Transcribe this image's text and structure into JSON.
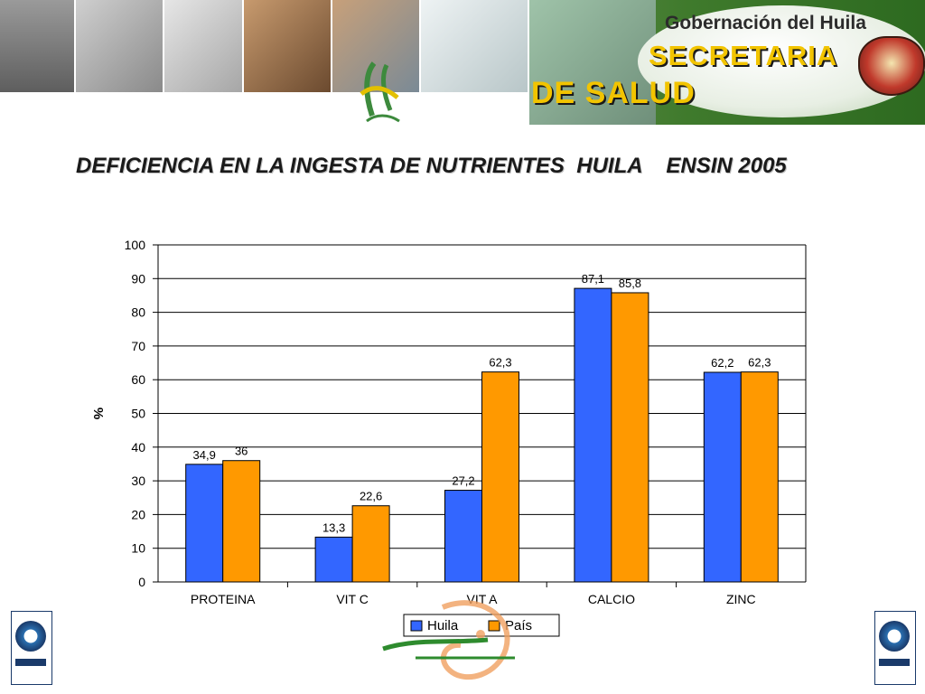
{
  "header": {
    "gov_title": "Gobernación del Huila",
    "gov_secretaria": "SECRETARIA",
    "gov_salud": "DE SALUD"
  },
  "slide": {
    "title": "DEFICIENCIA EN LA INGESTA DE NUTRIENTES  HUILA    ENSIN 2005"
  },
  "chart_data": {
    "type": "bar",
    "categories": [
      "PROTEINA",
      "VIT C",
      "VIT A",
      "CALCIO",
      "ZINC"
    ],
    "series": [
      {
        "name": "Huila",
        "values": [
          34.9,
          13.3,
          27.2,
          87.1,
          62.2
        ],
        "labels": [
          "34,9",
          "13,3",
          "27,2",
          "87,1",
          "62,2"
        ],
        "color": "#3366ff"
      },
      {
        "name": "País",
        "values": [
          36,
          22.6,
          62.3,
          85.8,
          62.3
        ],
        "labels": [
          "36",
          "22,6",
          "62,3",
          "85,8",
          "62,3"
        ],
        "color": "#ff9900"
      }
    ],
    "ylabel": "%",
    "ylim": [
      0,
      100
    ],
    "yticks": [
      0,
      10,
      20,
      30,
      40,
      50,
      60,
      70,
      80,
      90,
      100
    ],
    "grid": true,
    "legend": "bottom"
  },
  "colors": {
    "huila": "#3366ff",
    "pais": "#ff9900",
    "gridline": "#000000"
  }
}
